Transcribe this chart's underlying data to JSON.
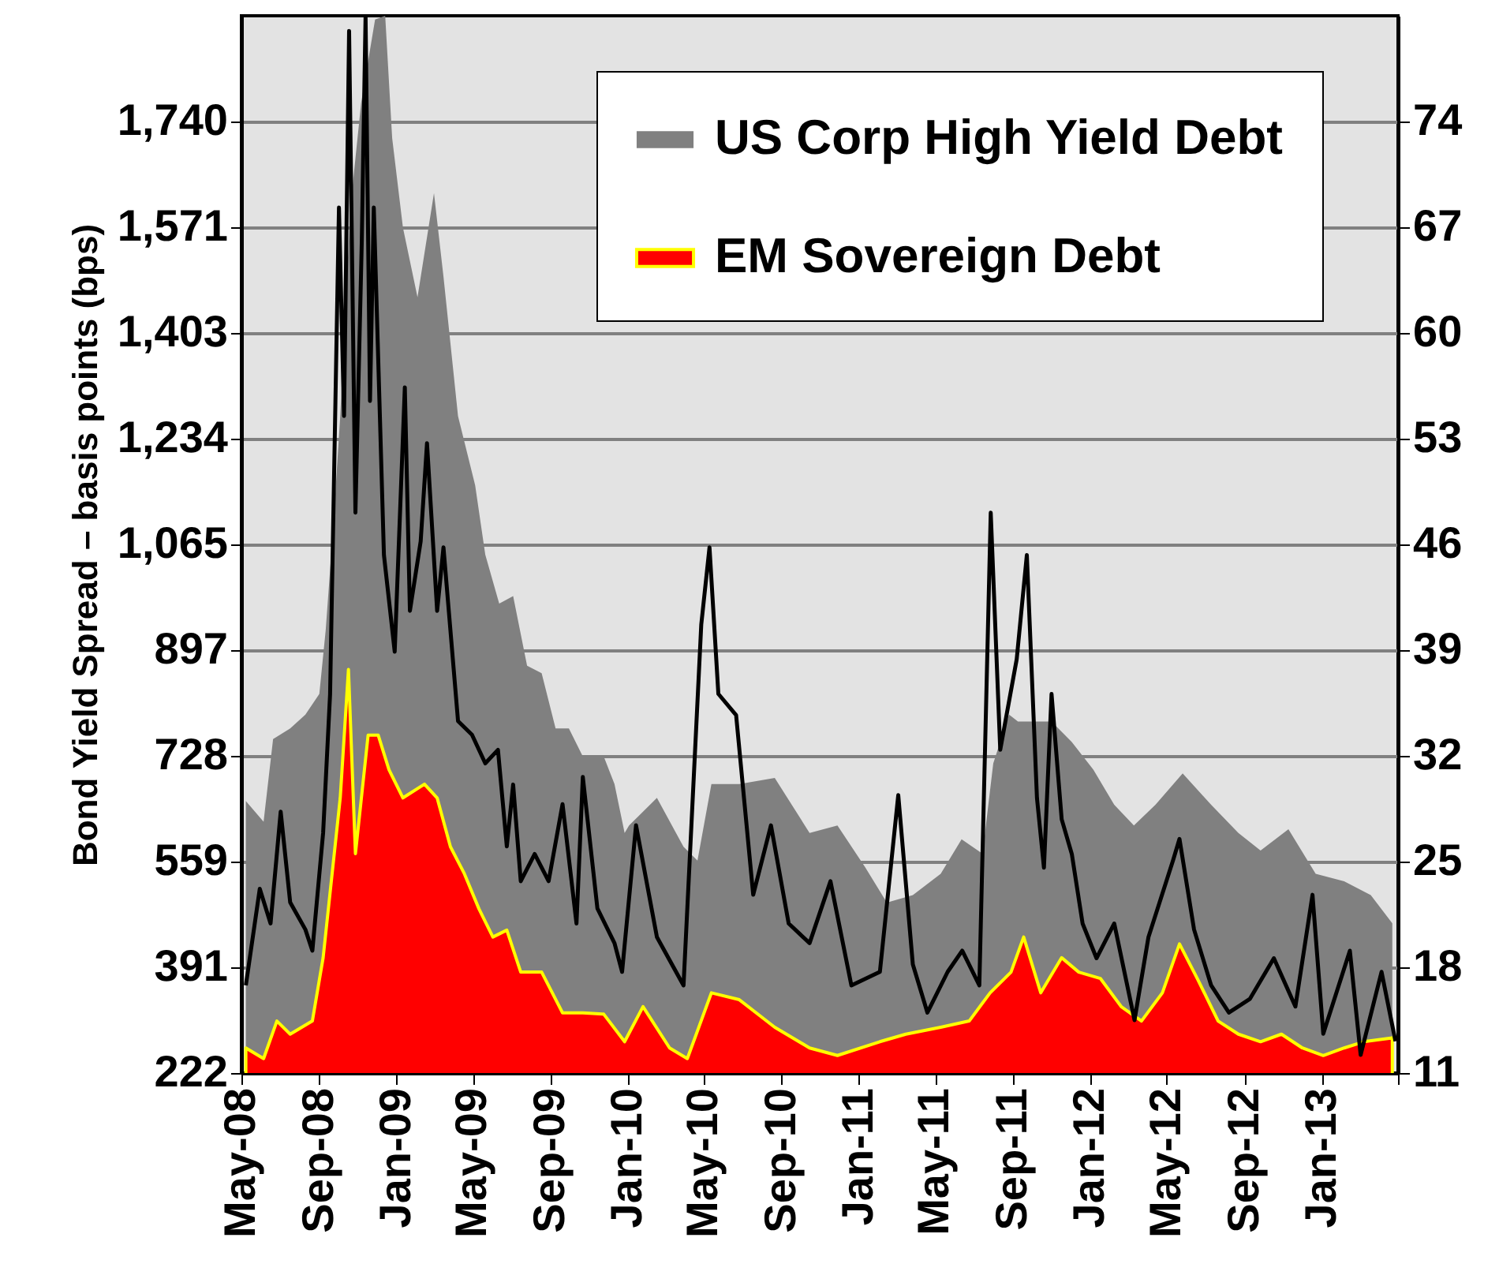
{
  "chart_data": {
    "type": "area",
    "ylabel": "Bond Yield Spread – basis points (bps)",
    "xlim": [
      "2008-05-01",
      "2013-05-01"
    ],
    "xticks": [
      {
        "value": "2008-05-01",
        "label": "May-08"
      },
      {
        "value": "2008-09-01",
        "label": "Sep-08"
      },
      {
        "value": "2009-01-01",
        "label": "Jan-09"
      },
      {
        "value": "2009-05-01",
        "label": "May-09"
      },
      {
        "value": "2009-09-01",
        "label": "Sep-09"
      },
      {
        "value": "2010-01-01",
        "label": "Jan-10"
      },
      {
        "value": "2010-05-01",
        "label": "May-10"
      },
      {
        "value": "2010-09-01",
        "label": "Sep-10"
      },
      {
        "value": "2011-01-01",
        "label": "Jan-11"
      },
      {
        "value": "2011-05-01",
        "label": "May-11"
      },
      {
        "value": "2011-09-01",
        "label": "Sep-11"
      },
      {
        "value": "2012-01-01",
        "label": "Jan-12"
      },
      {
        "value": "2012-05-01",
        "label": "May-12"
      },
      {
        "value": "2012-09-01",
        "label": "Sep-12"
      },
      {
        "value": "2013-01-01",
        "label": "Jan-13"
      },
      {
        "value": "2013-05-01",
        "label": null
      }
    ],
    "ylim": [
      222,
      1909
    ],
    "yticks": [
      222,
      391,
      559,
      728,
      897,
      {
        "value": 1065,
        "label": "1,065"
      },
      {
        "value": 1234,
        "label": "1,234"
      },
      {
        "value": 1403,
        "label": "1,403"
      },
      {
        "value": 1571,
        "label": "1,571"
      },
      {
        "value": 1740,
        "label": "1,740"
      }
    ],
    "y2lim": [
      11,
      81
    ],
    "y2ticks": [
      11,
      18,
      25,
      32,
      39,
      46,
      53,
      60,
      67,
      74
    ],
    "grid": "y",
    "legend": "top right",
    "series": [
      {
        "name": "US Corp High Yield Debt",
        "color": "#808080",
        "x": [
          "2008-05-08",
          "2008-06-05",
          "2008-06-20",
          "2008-07-17",
          "2008-08-10",
          "2008-09-01",
          "2008-09-11",
          "2008-09-23",
          "2008-10-04",
          "2008-10-20",
          "2008-11-06",
          "2008-11-28",
          "2008-12-14",
          "2008-12-25",
          "2009-01-11",
          "2009-02-03",
          "2009-03-01",
          "2009-03-16",
          "2009-04-08",
          "2009-05-05",
          "2009-05-21",
          "2009-06-12",
          "2009-07-04",
          "2009-07-26",
          "2009-08-18",
          "2009-09-09",
          "2009-09-30",
          "2009-10-22",
          "2009-11-24",
          "2009-12-11",
          "2009-12-27",
          "2010-01-03",
          "2010-02-16",
          "2010-03-30",
          "2010-04-21",
          "2010-05-13",
          "2010-06-26",
          "2010-08-21",
          "2010-10-15",
          "2010-11-28",
          "2011-01-11",
          "2011-02-14",
          "2011-03-27",
          "2011-05-10",
          "2011-06-12",
          "2011-07-15",
          "2011-08-01",
          "2011-08-26",
          "2011-09-09",
          "2011-11-01",
          "2011-12-03",
          "2012-01-06",
          "2012-02-08",
          "2012-03-10",
          "2012-04-13",
          "2012-05-26",
          "2012-07-10",
          "2012-08-22",
          "2012-09-26",
          "2012-11-09",
          "2012-12-22",
          "2013-02-05",
          "2013-03-19",
          "2013-04-22"
        ],
        "values": [
          656,
          623,
          755,
          772,
          794,
          827,
          928,
          1094,
          1270,
          1603,
          1770,
          1903,
          1909,
          1714,
          1571,
          1460,
          1626,
          1493,
          1270,
          1160,
          1049,
          971,
          983,
          872,
          860,
          772,
          772,
          727,
          727,
          683,
          605,
          617,
          661,
          583,
          561,
          683,
          683,
          693,
          605,
          617,
          550,
          494,
          506,
          540,
          595,
          572,
          716,
          794,
          783,
          783,
          750,
          706,
          650,
          617,
          650,
          700,
          650,
          605,
          577,
          611,
          540,
          528,
          506,
          461
        ]
      },
      {
        "name": "EM Sovereign Debt",
        "color": "#ff0000",
        "x": [
          "2008-05-08",
          "2008-06-05",
          "2008-06-26",
          "2008-07-17",
          "2008-08-21",
          "2008-09-07",
          "2008-10-04",
          "2008-10-17",
          "2008-10-28",
          "2008-11-17",
          "2008-12-03",
          "2008-12-20",
          "2009-01-11",
          "2009-02-14",
          "2009-03-06",
          "2009-03-27",
          "2009-04-18",
          "2009-05-11",
          "2009-06-02",
          "2009-06-24",
          "2009-07-16",
          "2009-08-18",
          "2009-09-20",
          "2009-10-22",
          "2009-11-24",
          "2009-12-27",
          "2010-01-25",
          "2010-03-08",
          "2010-04-05",
          "2010-05-13",
          "2010-06-26",
          "2010-08-21",
          "2010-10-15",
          "2010-11-28",
          "2011-02-03",
          "2011-03-16",
          "2011-05-10",
          "2011-06-24",
          "2011-07-27",
          "2011-08-29",
          "2011-09-18",
          "2011-10-15",
          "2011-11-17",
          "2011-12-14",
          "2012-01-17",
          "2012-02-19",
          "2012-03-22",
          "2012-04-24",
          "2012-05-21",
          "2012-06-18",
          "2012-07-21",
          "2012-08-22",
          "2012-09-26",
          "2012-10-29",
          "2012-12-01",
          "2013-01-03",
          "2013-02-05",
          "2013-03-08",
          "2013-04-22"
        ],
        "values": [
          262,
          245,
          305,
          284,
          305,
          406,
          661,
          866,
          572,
          761,
          761,
          706,
          661,
          683,
          661,
          583,
          540,
          484,
          439,
          450,
          383,
          383,
          318,
          318,
          316,
          272,
          328,
          262,
          245,
          350,
          339,
          295,
          262,
          250,
          272,
          284,
          295,
          305,
          350,
          383,
          439,
          350,
          406,
          383,
          373,
          328,
          305,
          350,
          428,
          373,
          305,
          284,
          272,
          284,
          262,
          250,
          262,
          272,
          278
        ]
      },
      {
        "type": "line",
        "axis": "y2",
        "color": "#000000",
        "x": [
          "2008-05-08",
          "2008-05-30",
          "2008-06-16",
          "2008-07-02",
          "2008-07-17",
          "2008-08-10",
          "2008-08-21",
          "2008-09-07",
          "2008-09-18",
          "2008-10-02",
          "2008-10-10",
          "2008-10-18",
          "2008-10-28",
          "2008-11-07",
          "2008-11-13",
          "2008-11-20",
          "2008-11-26",
          "2008-12-12",
          "2008-12-29",
          "2009-01-14",
          "2009-01-22",
          "2009-02-08",
          "2009-02-18",
          "2009-03-06",
          "2009-03-16",
          "2009-04-08",
          "2009-04-30",
          "2009-05-21",
          "2009-06-10",
          "2009-06-24",
          "2009-07-04",
          "2009-07-16",
          "2009-08-07",
          "2009-08-29",
          "2009-09-20",
          "2009-10-12",
          "2009-10-22",
          "2009-11-14",
          "2009-12-11",
          "2009-12-23",
          "2010-01-14",
          "2010-02-16",
          "2010-03-30",
          "2010-04-27",
          "2010-05-10",
          "2010-05-24",
          "2010-06-21",
          "2010-07-18",
          "2010-08-15",
          "2010-09-12",
          "2010-10-15",
          "2010-11-17",
          "2010-12-20",
          "2011-02-03",
          "2011-03-04",
          "2011-03-27",
          "2011-04-19",
          "2011-05-21",
          "2011-06-13",
          "2011-07-10",
          "2011-07-28",
          "2011-08-12",
          "2011-09-07",
          "2011-09-23",
          "2011-10-09",
          "2011-10-20",
          "2011-11-01",
          "2011-11-17",
          "2011-12-03",
          "2011-12-20",
          "2012-01-11",
          "2012-02-08",
          "2012-03-11",
          "2012-04-02",
          "2012-05-11",
          "2012-05-21",
          "2012-06-13",
          "2012-07-10",
          "2012-08-07",
          "2012-09-09",
          "2012-10-17",
          "2012-11-20",
          "2012-12-17",
          "2013-01-03",
          "2013-02-14",
          "2013-03-03",
          "2013-04-05",
          "2013-04-27"
        ],
        "values": [
          16.8,
          23.2,
          20.9,
          28.3,
          22.3,
          20.5,
          19.1,
          26.9,
          36.1,
          68.3,
          54.5,
          80,
          48.1,
          66,
          81,
          55.5,
          68.3,
          45.3,
          38.9,
          56.4,
          41.6,
          46.2,
          52.7,
          41.6,
          45.8,
          34.3,
          33.4,
          31.5,
          32.4,
          26,
          30.1,
          23.7,
          25.5,
          23.7,
          28.8,
          20.9,
          30.6,
          21.9,
          19.6,
          17.7,
          27.4,
          20,
          16.8,
          40.7,
          45.8,
          36.1,
          34.7,
          22.8,
          27.4,
          20.9,
          19.6,
          23.7,
          16.8,
          17.7,
          29.4,
          18.2,
          15,
          17.7,
          19.1,
          16.8,
          48.1,
          32.4,
          38.4,
          45.3,
          29.2,
          24.6,
          36.1,
          27.8,
          25.5,
          20.9,
          18.6,
          20.9,
          14.5,
          20,
          25.1,
          26.5,
          20.5,
          16.8,
          15,
          15.9,
          18.6,
          15.4,
          22.8,
          13.6,
          19.1,
          12.2,
          17.7,
          13.1
        ]
      }
    ]
  }
}
